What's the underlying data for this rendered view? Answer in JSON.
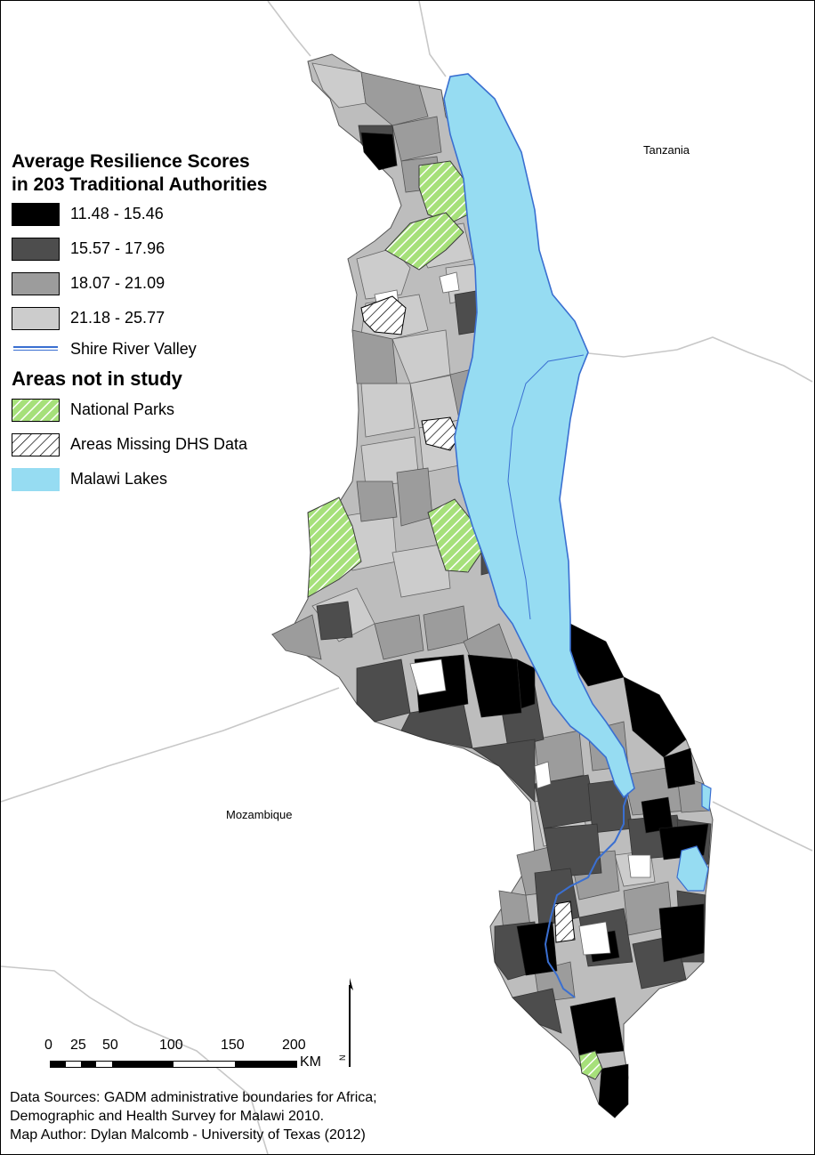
{
  "legend": {
    "title_line1": "Average Resilience Scores",
    "title_line2": "in 203 Traditional Authorities",
    "classes": [
      {
        "label": "11.48 - 15.46",
        "color": "#000000"
      },
      {
        "label": "15.57 - 17.96",
        "color": "#4d4d4d"
      },
      {
        "label": "18.07 - 21.09",
        "color": "#9c9c9c"
      },
      {
        "label": "21.18 - 25.77",
        "color": "#cccccc"
      }
    ],
    "river_label": "Shire River Valley",
    "river_color": "#3a6fd1",
    "not_in_study_title": "Areas not in study",
    "national_parks_label": "National Parks",
    "national_parks_color": "#a6e07a",
    "missing_label": "Areas Missing DHS Data",
    "lakes_label": "Malawi Lakes",
    "lakes_color": "#96dcf2"
  },
  "countries": {
    "tanzania": "Tanzania",
    "mozambique": "Mozambique"
  },
  "scale": {
    "ticks": [
      "0",
      "25",
      "50",
      "100",
      "150",
      "200"
    ],
    "unit": "KM"
  },
  "north_label": "N",
  "sources": {
    "line1": "Data Sources: GADM administrative boundaries for Africa;",
    "line2": "Demographic and Health Survey for Malawi 2010.",
    "line3": "Map Author:  Dylan Malcomb - University of Texas (2012)"
  }
}
